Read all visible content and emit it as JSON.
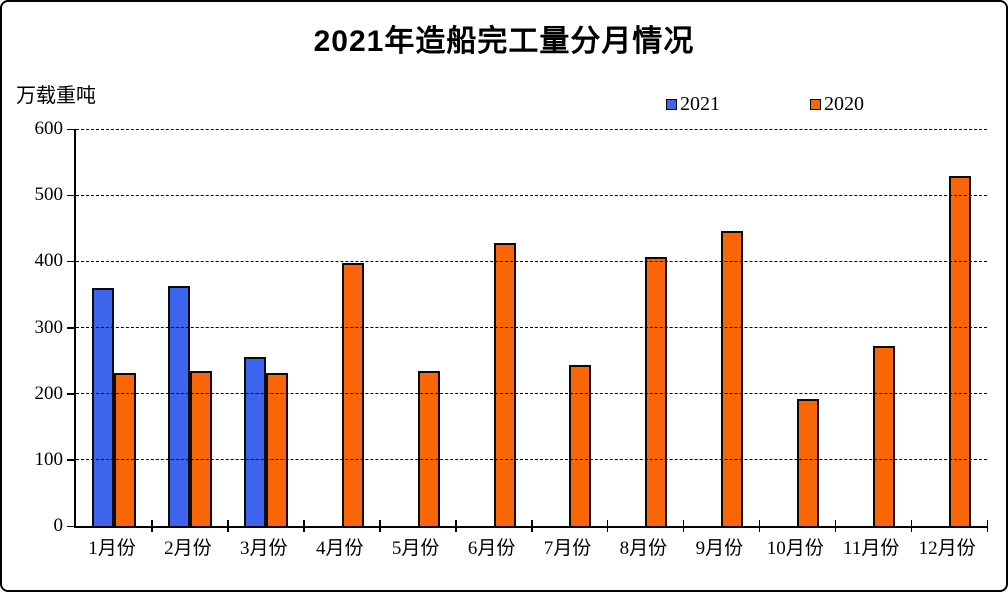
{
  "frame": {
    "background": "#ffffff",
    "border_color": "#000000"
  },
  "chart_data": {
    "type": "bar",
    "title": "2021年造船完工量分月情况",
    "unit_label": "万载重吨",
    "xlabel": "",
    "ylabel": "万载重吨",
    "categories": [
      "1月份",
      "2月份",
      "3月份",
      "4月份",
      "5月份",
      "6月份",
      "7月份",
      "8月份",
      "9月份",
      "10月份",
      "11月份",
      "12月份"
    ],
    "series": [
      {
        "name": "2021",
        "color": "#3D64EC",
        "values": [
          360,
          362,
          255,
          null,
          null,
          null,
          null,
          null,
          null,
          null,
          null,
          null
        ]
      },
      {
        "name": "2020",
        "color": "#FA6508",
        "values": [
          232,
          234,
          232,
          398,
          234,
          427,
          244,
          407,
          446,
          192,
          272,
          529
        ]
      }
    ],
    "ylim": [
      0,
      600
    ],
    "ytick_interval": 100,
    "yticks": [
      0,
      100,
      200,
      300,
      400,
      500,
      600
    ],
    "grid": "horizontal-dashed",
    "legend_position": "top-right",
    "bar_border_color": "#0b0b0b"
  }
}
